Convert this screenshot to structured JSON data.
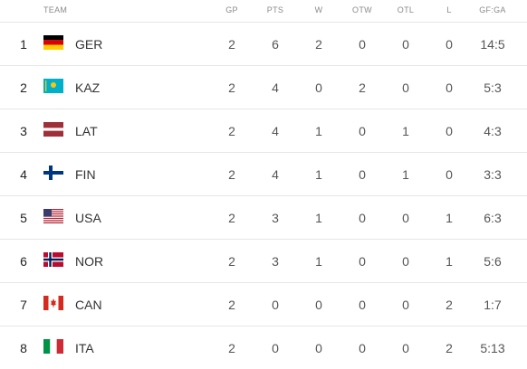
{
  "headers": {
    "team": "TEAM",
    "gp": "GP",
    "pts": "PTS",
    "w": "W",
    "otw": "OTW",
    "otl": "OTL",
    "l": "L",
    "gfga": "GF:GA"
  },
  "rows": [
    {
      "rank": "1",
      "team": "GER",
      "flag": "flag-germany-icon",
      "gp": "2",
      "pts": "6",
      "w": "2",
      "otw": "0",
      "otl": "0",
      "l": "0",
      "gfga": "14:5"
    },
    {
      "rank": "2",
      "team": "KAZ",
      "flag": "flag-kazakhstan-icon",
      "gp": "2",
      "pts": "4",
      "w": "0",
      "otw": "2",
      "otl": "0",
      "l": "0",
      "gfga": "5:3"
    },
    {
      "rank": "3",
      "team": "LAT",
      "flag": "flag-latvia-icon",
      "gp": "2",
      "pts": "4",
      "w": "1",
      "otw": "0",
      "otl": "1",
      "l": "0",
      "gfga": "4:3"
    },
    {
      "rank": "4",
      "team": "FIN",
      "flag": "flag-finland-icon",
      "gp": "2",
      "pts": "4",
      "w": "1",
      "otw": "0",
      "otl": "1",
      "l": "0",
      "gfga": "3:3"
    },
    {
      "rank": "5",
      "team": "USA",
      "flag": "flag-usa-icon",
      "gp": "2",
      "pts": "3",
      "w": "1",
      "otw": "0",
      "otl": "0",
      "l": "1",
      "gfga": "6:3"
    },
    {
      "rank": "6",
      "team": "NOR",
      "flag": "flag-norway-icon",
      "gp": "2",
      "pts": "3",
      "w": "1",
      "otw": "0",
      "otl": "0",
      "l": "1",
      "gfga": "5:6"
    },
    {
      "rank": "7",
      "team": "CAN",
      "flag": "flag-canada-icon",
      "gp": "2",
      "pts": "0",
      "w": "0",
      "otw": "0",
      "otl": "0",
      "l": "2",
      "gfga": "1:7"
    },
    {
      "rank": "8",
      "team": "ITA",
      "flag": "flag-italy-icon",
      "gp": "2",
      "pts": "0",
      "w": "0",
      "otw": "0",
      "otl": "0",
      "l": "2",
      "gfga": "5:13"
    }
  ]
}
